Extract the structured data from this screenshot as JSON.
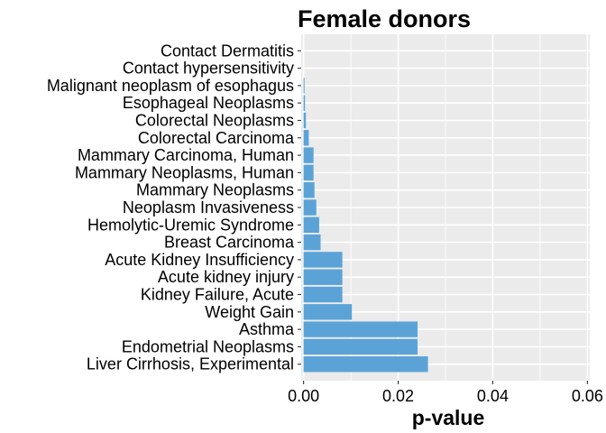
{
  "chart_data": {
    "type": "bar",
    "orientation": "horizontal",
    "title": "Female donors",
    "xlabel": "p-value",
    "ylabel": "",
    "xlim": [
      -0.0005,
      0.0605
    ],
    "xticks": [
      0,
      0.02,
      0.04,
      0.06
    ],
    "xtick_labels": [
      "0.00",
      "0.02",
      "0.04",
      "0.06"
    ],
    "grid": true,
    "legend": "none",
    "bar_color": "#5BA3D7",
    "panel_color": "#EBEBEB",
    "categories": [
      "Contact Dermatitis",
      "Contact hypersensitivity",
      "Malignant neoplasm of esophagus",
      "Esophageal Neoplasms",
      "Colorectal Neoplasms",
      "Colorectal Carcinoma",
      "Mammary Carcinoma, Human",
      "Mammary Neoplasms, Human",
      "Mammary Neoplasms",
      "Neoplasm Invasiveness",
      "Hemolytic-Uremic Syndrome",
      "Breast Carcinoma",
      "Acute Kidney Insufficiency",
      "Acute kidney injury",
      "Kidney Failure, Acute",
      "Weight Gain",
      "Asthma",
      "Endometrial Neoplasms",
      "Liver Cirrhosis, Experimental"
    ],
    "values": [
      0.0,
      0.0,
      0.0002,
      0.0003,
      0.0005,
      0.0011,
      0.0021,
      0.0021,
      0.0023,
      0.0027,
      0.0033,
      0.0036,
      0.0082,
      0.0082,
      0.0082,
      0.0102,
      0.0241,
      0.0241,
      0.0263
    ]
  }
}
